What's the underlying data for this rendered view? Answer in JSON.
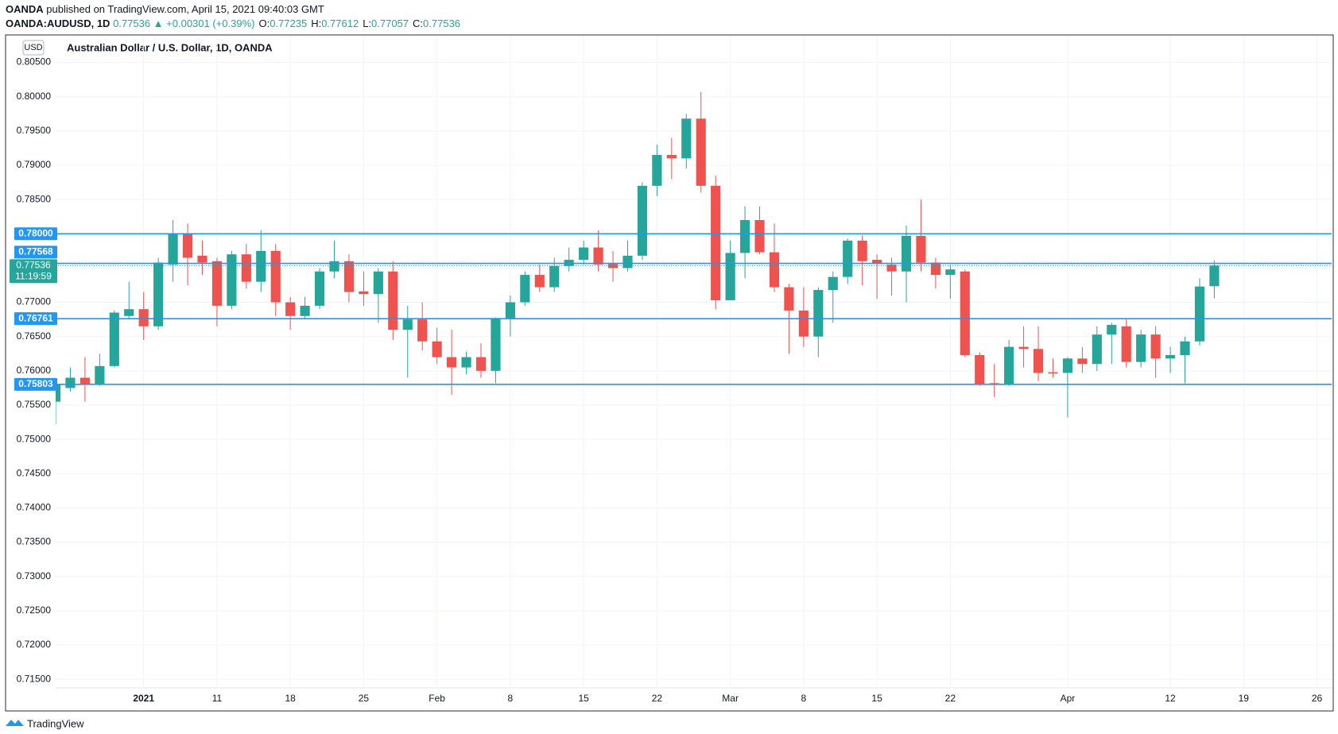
{
  "header": {
    "publisher": "OANDA",
    "published": "published on TradingView.com, April 15, 2021 09:40:03 GMT",
    "symbol": "OANDA:AUDUSD, 1D",
    "quote": "0.77536 ▲ +0.00301 (+0.39%)",
    "ohlc": [
      {
        "label": "O:",
        "value": "0.77235"
      },
      {
        "label": "H:",
        "value": "0.77612"
      },
      {
        "label": "L:",
        "value": "0.77057"
      },
      {
        "label": "C:",
        "value": "0.77536"
      }
    ]
  },
  "chart_data": {
    "type": "candlestick",
    "title": "Australian Dollar / U.S. Dollar, 1D, OANDA",
    "currency": "USD",
    "up_color": "#26a69a",
    "down_color": "#ef5350",
    "grid": true,
    "categories": [
      null,
      null,
      null,
      null,
      null,
      null,
      "2021",
      null,
      null,
      null,
      null,
      "11",
      null,
      null,
      null,
      null,
      "18",
      null,
      null,
      null,
      null,
      "25",
      null,
      null,
      null,
      null,
      "Feb",
      null,
      null,
      null,
      null,
      "8",
      null,
      null,
      null,
      null,
      "15",
      null,
      null,
      null,
      null,
      "22",
      null,
      null,
      null,
      null,
      "Mar",
      null,
      null,
      null,
      null,
      "8",
      null,
      null,
      null,
      null,
      "15",
      null,
      null,
      null,
      null,
      "22",
      null,
      null,
      null,
      null,
      null,
      null,
      null,
      "Apr",
      null,
      null,
      null,
      null,
      null,
      null,
      "12",
      null,
      null,
      null,
      null,
      "19",
      null,
      null,
      null,
      null,
      "26",
      null
    ],
    "open": [
      0.7555,
      0.7575,
      0.759,
      0.758,
      0.7607,
      0.768,
      0.769,
      0.7665,
      0.7755,
      0.78,
      0.7768,
      0.776,
      0.7695,
      0.777,
      0.773,
      0.7775,
      0.77,
      0.768,
      0.7695,
      0.7745,
      0.776,
      0.7716,
      0.7712,
      0.7745,
      0.766,
      0.7675,
      0.7643,
      0.762,
      0.7605,
      0.762,
      0.76,
      0.7677,
      0.77,
      0.774,
      0.7722,
      0.7753,
      0.7762,
      0.778,
      0.7756,
      0.775,
      0.7768,
      0.787,
      0.7915,
      0.791,
      0.7968,
      0.787,
      0.7703,
      0.7772,
      0.782,
      0.7773,
      0.7722,
      0.7688,
      0.765,
      0.7718,
      0.7737,
      0.779,
      0.7762,
      0.7755,
      0.7745,
      0.7797,
      0.7758,
      0.774,
      0.7745,
      0.7623,
      0.7582,
      0.758,
      0.7635,
      0.7632,
      0.7598,
      0.7597,
      0.7618,
      0.761,
      0.7653,
      0.7665,
      0.7613,
      0.7653,
      0.7618,
      0.7623,
      0.7643,
      0.77235,
      null,
      null,
      null,
      null,
      null,
      null,
      null,
      null
    ],
    "high": [
      0.7582,
      0.7605,
      0.762,
      0.7625,
      0.7688,
      0.773,
      0.7715,
      0.7765,
      0.782,
      0.7815,
      0.779,
      0.7765,
      0.7775,
      0.7785,
      0.7805,
      0.7785,
      0.7708,
      0.7708,
      0.775,
      0.779,
      0.777,
      0.7745,
      0.775,
      0.776,
      0.7695,
      0.77,
      0.7663,
      0.766,
      0.7628,
      0.764,
      0.7678,
      0.771,
      0.7745,
      0.7755,
      0.7765,
      0.778,
      0.779,
      0.7805,
      0.7775,
      0.779,
      0.7875,
      0.793,
      0.794,
      0.7975,
      0.8007,
      0.7885,
      0.779,
      0.784,
      0.784,
      0.7815,
      0.7727,
      0.7722,
      0.7722,
      0.7745,
      0.7793,
      0.7798,
      0.777,
      0.7765,
      0.7812,
      0.785,
      0.7765,
      0.7755,
      0.7748,
      0.7627,
      0.761,
      0.7645,
      0.7665,
      0.7665,
      0.7618,
      0.762,
      0.7635,
      0.7665,
      0.767,
      0.7677,
      0.766,
      0.7665,
      0.7635,
      0.765,
      0.7735,
      0.77612,
      null,
      null,
      null,
      null,
      null,
      null,
      null,
      null
    ],
    "low": [
      0.7522,
      0.757,
      0.7555,
      0.7578,
      0.7605,
      0.7675,
      0.7645,
      0.766,
      0.773,
      0.7725,
      0.774,
      0.7665,
      0.769,
      0.772,
      0.7715,
      0.768,
      0.766,
      0.7675,
      0.769,
      0.7735,
      0.77,
      0.7695,
      0.767,
      0.7645,
      0.759,
      0.763,
      0.761,
      0.7565,
      0.7595,
      0.759,
      0.7582,
      0.765,
      0.7695,
      0.7715,
      0.7715,
      0.7745,
      0.7755,
      0.7745,
      0.773,
      0.7745,
      0.7762,
      0.7855,
      0.788,
      0.7895,
      0.786,
      0.769,
      0.7703,
      0.7735,
      0.777,
      0.7715,
      0.7625,
      0.7635,
      0.762,
      0.767,
      0.7727,
      0.7725,
      0.7705,
      0.771,
      0.77,
      0.7745,
      0.772,
      0.7705,
      0.762,
      0.7578,
      0.7562,
      0.7578,
      0.7605,
      0.7585,
      0.759,
      0.7532,
      0.7597,
      0.76,
      0.761,
      0.7605,
      0.7605,
      0.759,
      0.7597,
      0.7582,
      0.7637,
      0.77057,
      null,
      null,
      null,
      null,
      null,
      null,
      null,
      null
    ],
    "close": [
      0.758,
      0.759,
      0.758,
      0.7607,
      0.7685,
      0.769,
      0.7665,
      0.7758,
      0.78,
      0.7765,
      0.7758,
      0.7695,
      0.777,
      0.773,
      0.7775,
      0.77,
      0.768,
      0.7695,
      0.7745,
      0.776,
      0.7715,
      0.7712,
      0.7745,
      0.766,
      0.7675,
      0.7643,
      0.762,
      0.7605,
      0.762,
      0.76,
      0.7677,
      0.77,
      0.774,
      0.7722,
      0.7753,
      0.7762,
      0.778,
      0.7755,
      0.775,
      0.7768,
      0.787,
      0.7915,
      0.791,
      0.7968,
      0.787,
      0.7703,
      0.7772,
      0.782,
      0.7773,
      0.7722,
      0.7688,
      0.765,
      0.7718,
      0.7737,
      0.779,
      0.776,
      0.7757,
      0.7745,
      0.7797,
      0.7758,
      0.774,
      0.7748,
      0.7623,
      0.758,
      0.758,
      0.7635,
      0.7632,
      0.7597,
      0.7596,
      0.7618,
      0.761,
      0.7653,
      0.7667,
      0.7613,
      0.7653,
      0.7618,
      0.7623,
      0.7643,
      0.7723,
      0.77536,
      null,
      null,
      null,
      null,
      null,
      null,
      null,
      null
    ],
    "ylim": [
      0.71374,
      0.80889
    ],
    "yticks": [
      {
        "value": 0.805,
        "label": "0.80500"
      },
      {
        "value": 0.8,
        "label": "0.80000"
      },
      {
        "value": 0.795,
        "label": "0.79500"
      },
      {
        "value": 0.79,
        "label": "0.79000"
      },
      {
        "value": 0.785,
        "label": "0.78500"
      },
      {
        "value": 0.78,
        "label": "0.78000"
      },
      {
        "value": 0.775,
        "label": "0.77500"
      },
      {
        "value": 0.77,
        "label": "0.77000"
      },
      {
        "value": 0.765,
        "label": "0.76500"
      },
      {
        "value": 0.76,
        "label": "0.76000"
      },
      {
        "value": 0.755,
        "label": "0.75500"
      },
      {
        "value": 0.75,
        "label": "0.75000"
      },
      {
        "value": 0.745,
        "label": "0.74500"
      },
      {
        "value": 0.74,
        "label": "0.74000"
      },
      {
        "value": 0.735,
        "label": "0.73500"
      },
      {
        "value": 0.73,
        "label": "0.73000"
      },
      {
        "value": 0.725,
        "label": "0.72500"
      },
      {
        "value": 0.72,
        "label": "0.72000"
      },
      {
        "value": 0.715,
        "label": "0.71500"
      }
    ],
    "level_color": "#2196f3",
    "levels": [
      {
        "value": 0.78,
        "label": "0.78000"
      },
      {
        "value": 0.77568,
        "label": "0.77568"
      },
      {
        "value": 0.76761,
        "label": "0.76761"
      },
      {
        "value": 0.75803,
        "label": "0.75803"
      }
    ],
    "last_price": {
      "value": 0.77536,
      "label": "0.77536",
      "countdown": "11:19:59"
    }
  },
  "footer": {
    "brand": "TradingView"
  }
}
